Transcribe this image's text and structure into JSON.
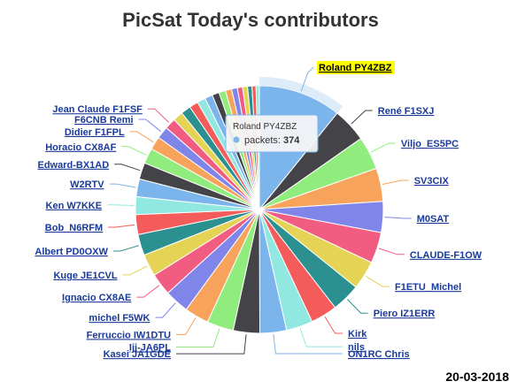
{
  "chart_data": {
    "type": "pie",
    "title": "PicSat  Today's contributors",
    "date": "20-03-2018",
    "series_name": "packets",
    "highlighted": "Roland PY4ZBZ",
    "tooltip": {
      "name": "Roland PY4ZBZ",
      "key": "packets: ",
      "value": "374"
    },
    "labels_clockwise": [
      "Roland PY4ZBZ",
      "René F1SXJ",
      "Viljo_ES5PC",
      "SV3CIX",
      "M0SAT",
      "CLAUDE-F1OW",
      "F1ETU_Michel",
      "Piero IZ1ERR",
      "Kirk",
      "nils",
      "ON1RC Chris",
      "Kasei JA1GDE",
      "Iji-JA6PL",
      "Ferruccio IW1DTU",
      "michel F5WK",
      "Ignacio CX8AE",
      "Kuge JE1CVL",
      "Albert PD0OXW",
      "Bob_N6RFM",
      "Ken W7KKE",
      "W2RTV",
      "Edward-BX1AD",
      "Horacio CX8AF",
      "Didier F1FPL",
      "F6CNB Remi",
      "Jean Claude F1FSF"
    ],
    "values": [
      374,
      155,
      150,
      150,
      140,
      140,
      130,
      130,
      120,
      120,
      120,
      120,
      120,
      110,
      110,
      100,
      100,
      95,
      90,
      80,
      80,
      75,
      70,
      60,
      55,
      50,
      45,
      45,
      40,
      38,
      35,
      32,
      30,
      28,
      26,
      24,
      22,
      20,
      18,
      15
    ],
    "colors": [
      "#7cb5ec",
      "#434348",
      "#90ed7d",
      "#f7a35c",
      "#8085e9",
      "#f15c80",
      "#e4d354",
      "#2b908f",
      "#f45b5b",
      "#91e8e1"
    ]
  }
}
